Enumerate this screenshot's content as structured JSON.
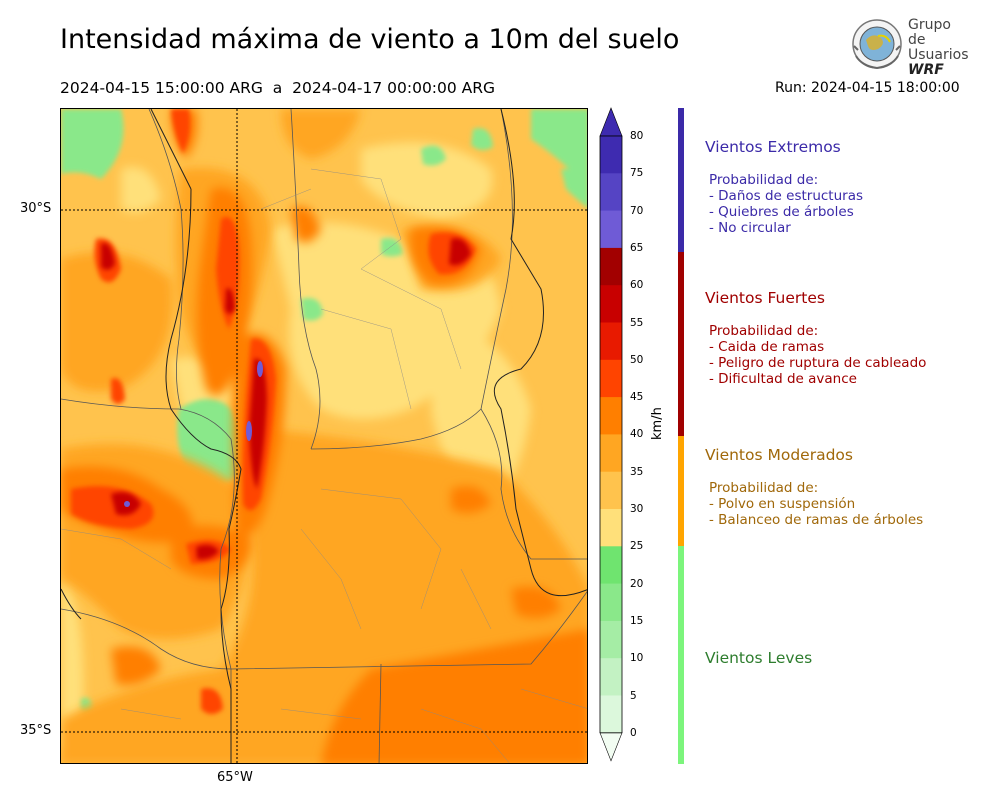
{
  "header": {
    "title": "Intensidad máxima de viento a 10m del suelo",
    "period": "2024-04-15 15:00:00 ARG  a  2024-04-17 00:00:00 ARG",
    "run": "Run: 2024-04-15 18:00:00"
  },
  "logo": {
    "line1": "Grupo de",
    "line2": "Usuarios",
    "line3": "WRF",
    "icon": "globe-seal-icon"
  },
  "map": {
    "lat_labels": [
      "30°S",
      "35°S"
    ],
    "lon_labels": [
      "65°W"
    ]
  },
  "colorbar": {
    "unit": "km/h",
    "ticks": [
      "0",
      "5",
      "10",
      "15",
      "20",
      "25",
      "30",
      "35",
      "40",
      "45",
      "50",
      "55",
      "60",
      "65",
      "70",
      "75",
      "80"
    ],
    "colors": [
      "#f2fdf2",
      "#dcf8dc",
      "#c3f2c3",
      "#a5eda5",
      "#8ae88a",
      "#6fe46f",
      "#ffe07a",
      "#ffc34d",
      "#ffa622",
      "#ff7f00",
      "#ff4400",
      "#e81a00",
      "#c80000",
      "#a20000",
      "#6f5bd6",
      "#5544c4",
      "#3e2bb0"
    ],
    "extend_color": "#3e2bb0"
  },
  "legend": {
    "categories": [
      {
        "title": "Vientos Extremos",
        "color": "#3b2aa8",
        "lines": [
          "Probabilidad de:",
          "- Daños de estructuras",
          "- Quiebres de árboles",
          "- No circular"
        ]
      },
      {
        "title": "Vientos Fuertes",
        "color": "#a00000",
        "lines": [
          "Probabilidad de:",
          "- Caida de ramas",
          "- Peligro de ruptura de cableado",
          "- Dificultad de avance"
        ]
      },
      {
        "title": "Vientos Moderados",
        "color": "#a0680a",
        "bar_color": "#ffa500",
        "lines": [
          "Probabilidad de:",
          "- Polvo en suspensión",
          "- Balanceo de ramas de árboles"
        ]
      },
      {
        "title": "Vientos Leves",
        "color": "#2e7d2e",
        "bar_color": "#7cf57c",
        "lines": []
      }
    ]
  }
}
